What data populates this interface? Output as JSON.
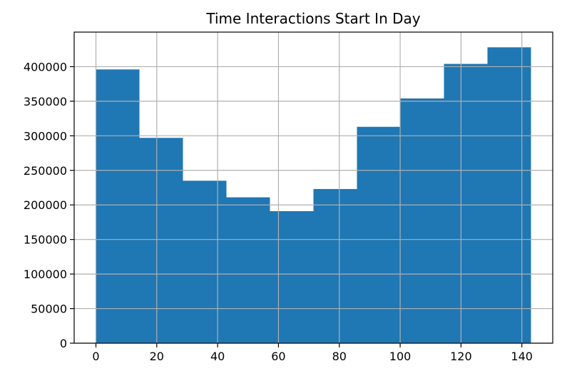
{
  "chart_data": {
    "type": "bar",
    "title": "Time Interactions Start In Day",
    "xlabel": "",
    "ylabel": "",
    "bin_edges": [
      0,
      14.3,
      28.6,
      42.9,
      57.2,
      71.5,
      85.8,
      100.1,
      114.4,
      128.7,
      143
    ],
    "values": [
      396000,
      297000,
      235000,
      211000,
      191000,
      223000,
      313000,
      354000,
      404000,
      428000
    ],
    "xlim": [
      -7.15,
      150.15
    ],
    "ylim": [
      0,
      450000
    ],
    "xticks": [
      0,
      20,
      40,
      60,
      80,
      100,
      120,
      140
    ],
    "yticks": [
      0,
      50000,
      100000,
      150000,
      200000,
      250000,
      300000,
      350000,
      400000
    ],
    "xtick_labels": [
      "0",
      "20",
      "40",
      "60",
      "80",
      "100",
      "120",
      "140"
    ],
    "ytick_labels": [
      "0",
      "50000",
      "100000",
      "150000",
      "200000",
      "250000",
      "300000",
      "350000",
      "400000"
    ],
    "grid": true,
    "bar_color": "#1f77b4",
    "grid_color": "#b0b0b0"
  }
}
